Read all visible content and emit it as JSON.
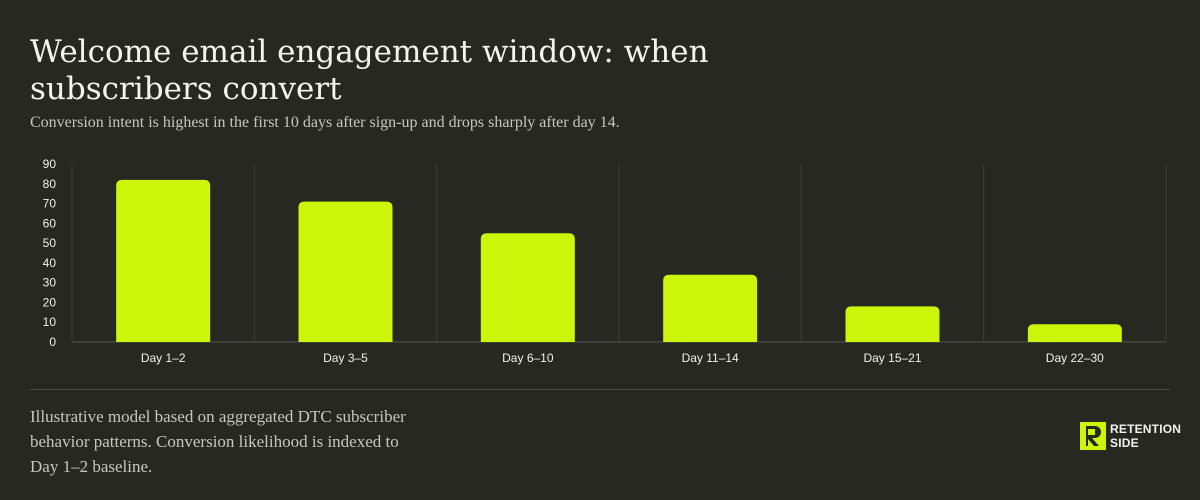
{
  "header": {
    "title": "Welcome email engagement window: when subscribers convert",
    "subtitle": "Conversion intent is highest in the first 10 days after sign-up and drops sharply after day 14."
  },
  "footer": {
    "note": "Illustrative model based on aggregated DTC subscriber behavior patterns. Conversion likelihood is indexed to Day 1–2 baseline.",
    "logo_line1": "RETENTION",
    "logo_line2": "SIDE"
  },
  "colors": {
    "background": "#272822",
    "bar": "#ccf50a",
    "gridline": "#3d3e38",
    "text": "#f2f2ec"
  },
  "chart_data": {
    "type": "bar",
    "categories": [
      "Day 1–2",
      "Day 3–5",
      "Day 6–10",
      "Day 11–14",
      "Day 15–21",
      "Day 22–30"
    ],
    "values": [
      82,
      71,
      55,
      34,
      18,
      9
    ],
    "ylim": [
      0,
      90
    ],
    "yticks": [
      0,
      10,
      20,
      30,
      40,
      50,
      60,
      70,
      80,
      90
    ],
    "grid": "vertical separators between categories",
    "legend": "none"
  }
}
